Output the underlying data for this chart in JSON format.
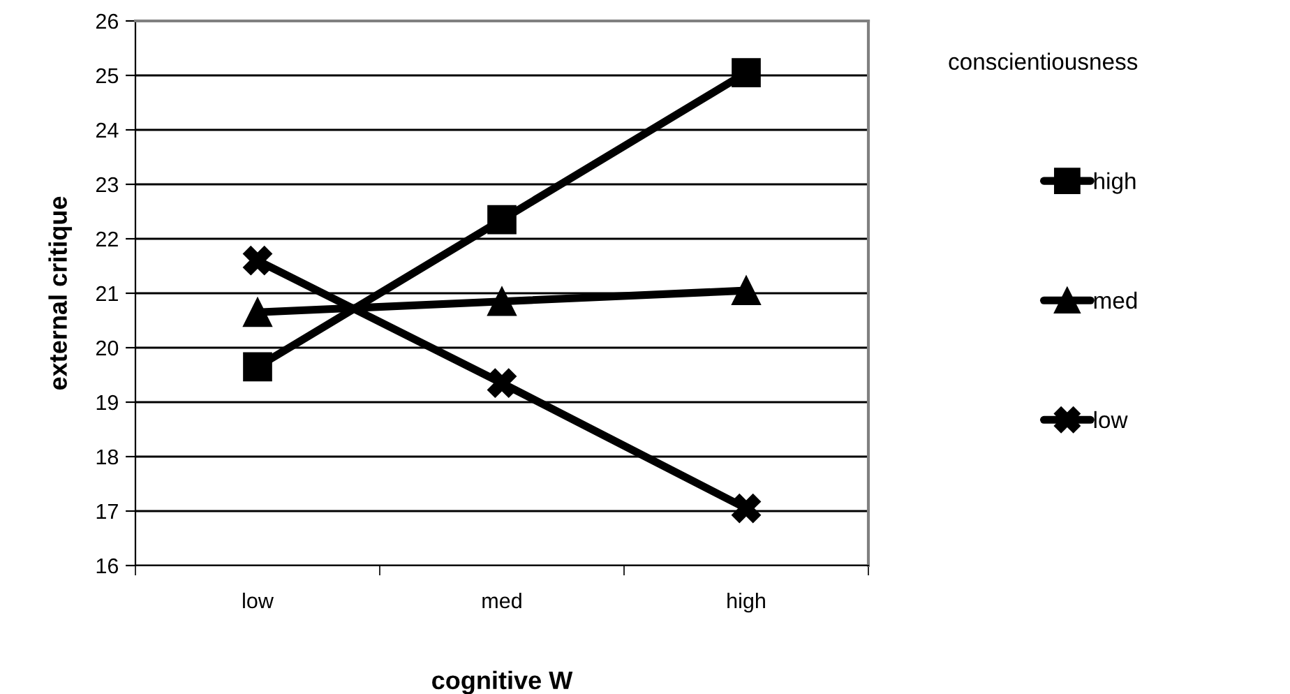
{
  "chart_data": {
    "type": "line",
    "xlabel": "cognitive W",
    "ylabel": "external critique",
    "legend_title": "conscientiousness",
    "categories": [
      "low",
      "med",
      "high"
    ],
    "series": [
      {
        "name": "high",
        "color": "#000000",
        "marker": "square",
        "values": [
          19.65,
          22.35,
          25.05
        ]
      },
      {
        "name": "med",
        "color": "#000000",
        "marker": "triangle",
        "values": [
          20.65,
          20.85,
          21.05
        ]
      },
      {
        "name": "low",
        "color": "#000000",
        "marker": "cross",
        "values": [
          21.6,
          19.35,
          17.05
        ]
      }
    ],
    "ylim": [
      16,
      26
    ],
    "yticks": [
      16,
      17,
      18,
      19,
      20,
      21,
      22,
      23,
      24,
      25,
      26
    ],
    "grid": "y",
    "legend": "right",
    "line_style": "solid"
  }
}
